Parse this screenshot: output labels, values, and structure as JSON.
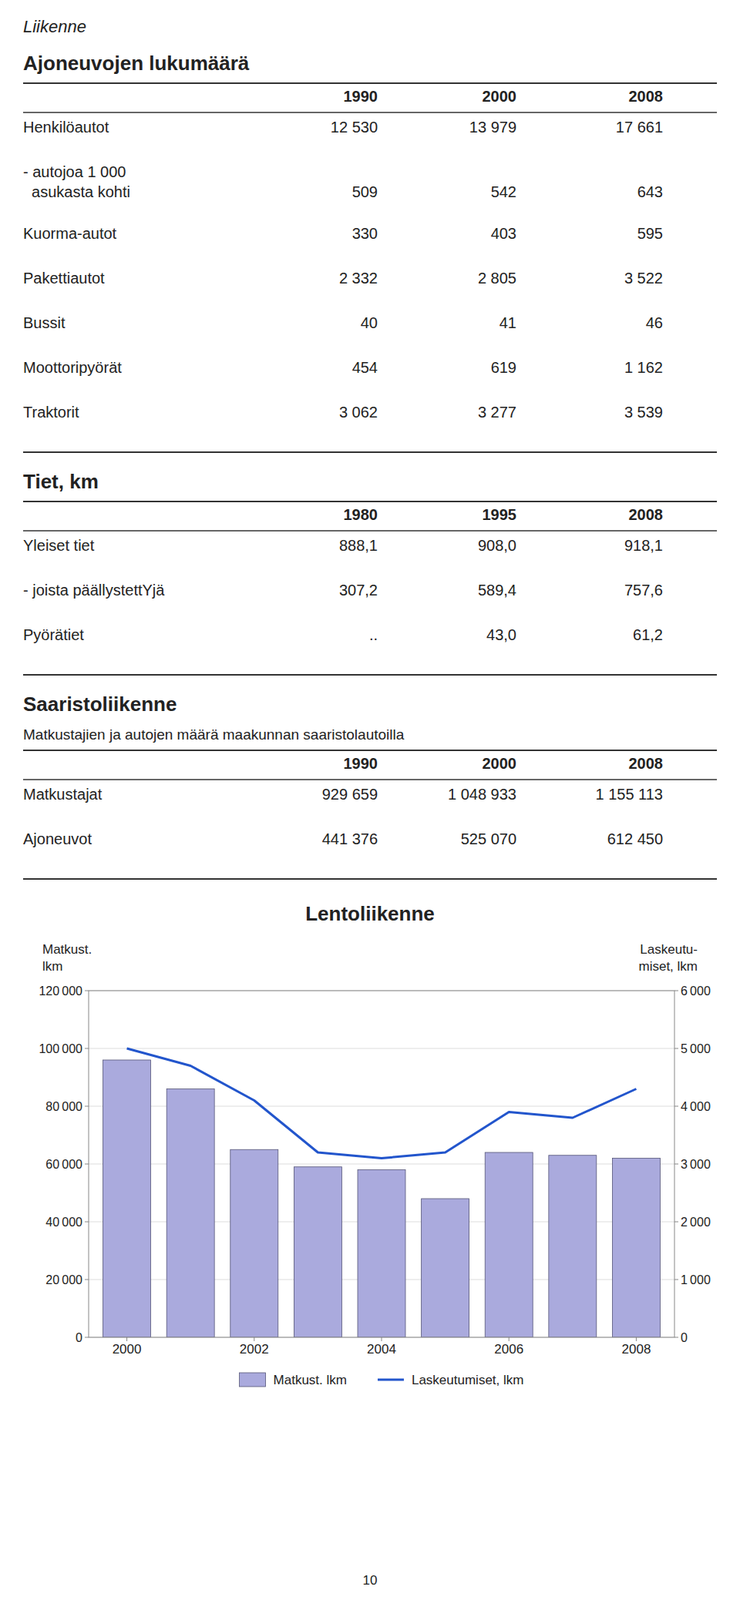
{
  "page_title": "Liikenne",
  "page_number": "10",
  "tables": [
    {
      "title": "Ajoneuvojen lukumäärä",
      "columns": [
        "1990",
        "2000",
        "2008"
      ],
      "rows": [
        {
          "label": "Henkilöautot",
          "values": [
            "12 530",
            "13 979",
            "17 661"
          ]
        },
        {
          "label_lines": [
            "- autojoa 1 000",
            "  asukasta kohti"
          ],
          "values": [
            "509",
            "542",
            "643"
          ]
        },
        {
          "label": "Kuorma-autot",
          "values": [
            "330",
            "403",
            "595"
          ]
        },
        {
          "label": "Pakettiautot",
          "values": [
            "2 332",
            "2 805",
            "3 522"
          ]
        },
        {
          "label": "Bussit",
          "values": [
            "40",
            "41",
            "46"
          ]
        },
        {
          "label": "Moottoripyörät",
          "values": [
            "454",
            "619",
            "1 162"
          ]
        },
        {
          "label": "Traktorit",
          "values": [
            "3 062",
            "3 277",
            "3 539"
          ]
        }
      ]
    },
    {
      "title": "Tiet, km",
      "columns": [
        "1980",
        "1995",
        "2008"
      ],
      "rows": [
        {
          "label": "Yleiset tiet",
          "values": [
            "888,1",
            "908,0",
            "918,1"
          ]
        },
        {
          "label": "- joista päällystettYjä",
          "values": [
            "307,2",
            "589,4",
            "757,6"
          ]
        },
        {
          "label": "Pyörätiet",
          "values": [
            "..",
            "43,0",
            "61,2"
          ]
        }
      ]
    },
    {
      "title": "Saaristoliikenne",
      "subtitle": "Matkustajien ja autojen määrä maakunnan saaristolautoilla",
      "columns": [
        "1990",
        "2000",
        "2008"
      ],
      "rows": [
        {
          "label": "Matkustajat",
          "values": [
            "929 659",
            "1 048 933",
            "1 155 113"
          ]
        },
        {
          "label": "Ajoneuvot",
          "values": [
            "441 376",
            "525 070",
            "612 450"
          ]
        }
      ]
    }
  ],
  "chart_data": {
    "type": "bar",
    "title": "Lentoliikenne",
    "ylabel": [
      "Matkust.",
      "lkm"
    ],
    "y2label": [
      "Laskeutu-",
      "miset, lkm"
    ],
    "x": [
      2000,
      2001,
      2002,
      2003,
      2004,
      2005,
      2006,
      2007,
      2008
    ],
    "xlim": [
      1999.4,
      2008.6
    ],
    "xticks": [
      2000,
      2002,
      2004,
      2006,
      2008
    ],
    "ylim": [
      0,
      120000
    ],
    "yticks": [
      0,
      {
        "value": 20000,
        "label": "20 000"
      },
      {
        "value": 40000,
        "label": "40 000"
      },
      {
        "value": 60000,
        "label": "60 000"
      },
      {
        "value": 80000,
        "label": "80 000"
      },
      {
        "value": 100000,
        "label": "100 000"
      },
      {
        "value": 120000,
        "label": "120 000"
      }
    ],
    "y2lim": [
      0,
      6000
    ],
    "y2ticks": [
      0,
      {
        "value": 1000,
        "label": "1 000"
      },
      {
        "value": 2000,
        "label": "2 000"
      },
      {
        "value": 3000,
        "label": "3 000"
      },
      {
        "value": 4000,
        "label": "4 000"
      },
      {
        "value": 5000,
        "label": "5 000"
      },
      {
        "value": 6000,
        "label": "6 000"
      }
    ],
    "grid": true,
    "legend": "bottom",
    "series": [
      {
        "name": "Matkust. lkm",
        "type": "bar",
        "color": "#aaaadd",
        "values": [
          96000,
          86000,
          65000,
          59000,
          58000,
          48000,
          64000,
          63000,
          62000
        ]
      },
      {
        "name": "Laskeutumiset, lkm",
        "type": "line",
        "axis": "y2",
        "color": "#2255cc",
        "values": [
          5000,
          4700,
          4100,
          3200,
          3100,
          3200,
          3900,
          3800,
          4300
        ]
      }
    ]
  }
}
